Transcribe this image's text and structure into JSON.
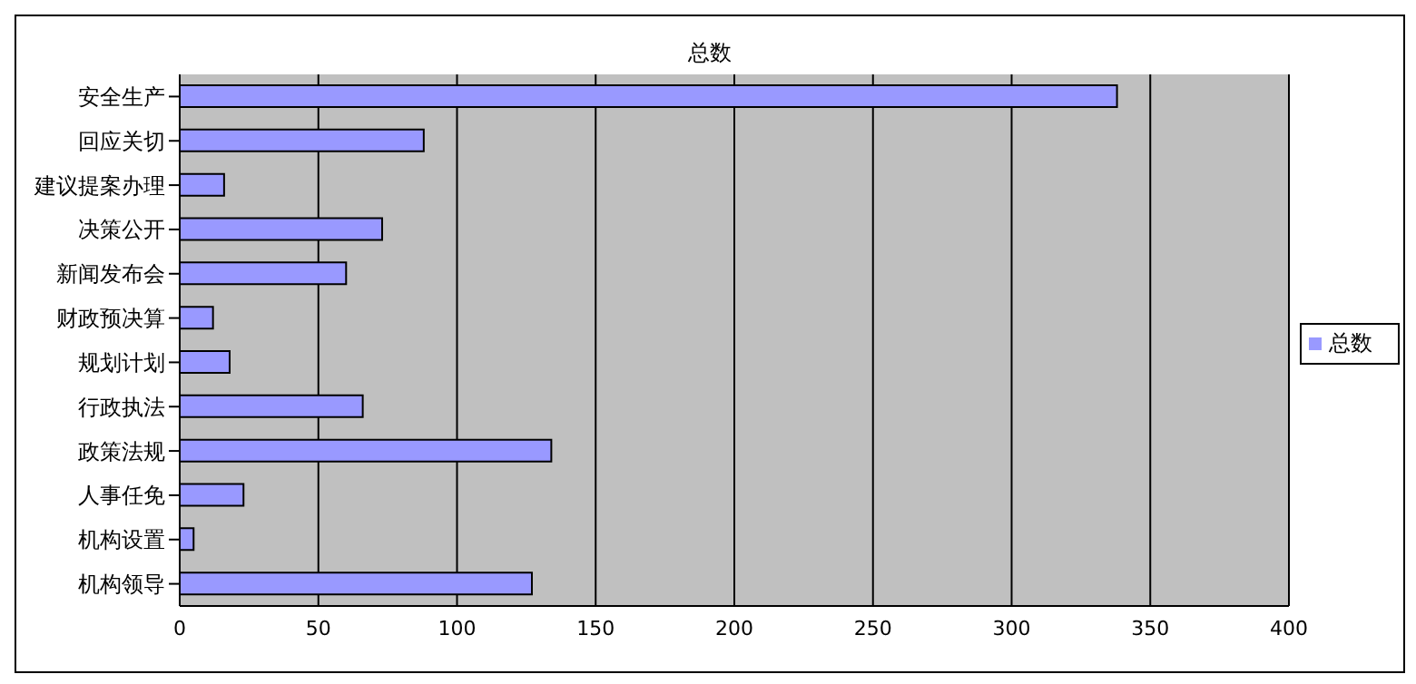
{
  "chart_data": {
    "type": "bar",
    "orientation": "horizontal",
    "title": "总数",
    "categories": [
      "安全生产",
      "回应关切",
      "建议提案办理",
      "决策公开",
      "新闻发布会",
      "财政预决算",
      "规划计划",
      "行政执法",
      "政策法规",
      "人事任免",
      "机构设置",
      "机构领导"
    ],
    "series": [
      {
        "name": "总数",
        "color": "#9999ff",
        "values": [
          338,
          88,
          16,
          73,
          60,
          12,
          18,
          66,
          134,
          23,
          5,
          127
        ]
      }
    ],
    "xlim": [
      0,
      400
    ],
    "xticks": [
      0,
      50,
      100,
      150,
      200,
      250,
      300,
      350,
      400
    ],
    "grid": "x",
    "legend": "right"
  }
}
